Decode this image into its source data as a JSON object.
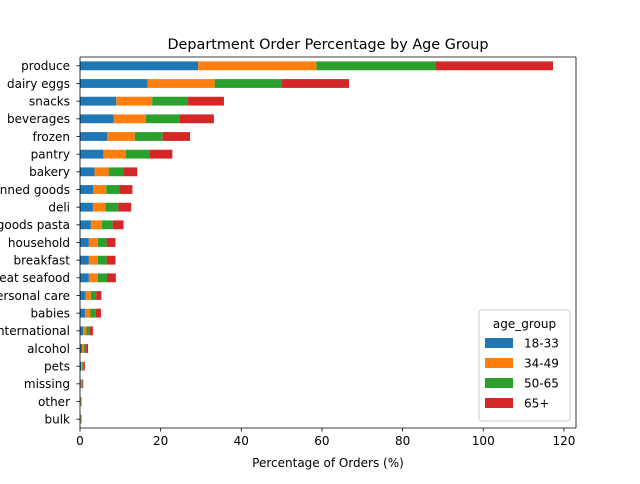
{
  "chart_data": {
    "type": "bar",
    "orientation": "horizontal",
    "stacked": true,
    "title": "Department Order Percentage by Age Group",
    "xlabel": "Percentage of Orders (%)",
    "ylabel": "",
    "xlim": [
      0,
      123
    ],
    "xticks": [
      0,
      20,
      40,
      60,
      80,
      100,
      120
    ],
    "grid": false,
    "categories": [
      "produce",
      "dairy eggs",
      "snacks",
      "beverages",
      "frozen",
      "pantry",
      "bakery",
      "canned goods",
      "deli",
      "dry goods pasta",
      "household",
      "breakfast",
      "meat seafood",
      "personal care",
      "babies",
      "international",
      "alcohol",
      "pets",
      "missing",
      "other",
      "bulk"
    ],
    "legend": {
      "title": "age_group",
      "placement": "lower-right"
    },
    "series": [
      {
        "name": "18-33",
        "color": "#1f77b4",
        "values": [
          29.3,
          16.8,
          9.0,
          8.3,
          6.7,
          5.8,
          3.6,
          3.3,
          3.2,
          2.7,
          2.2,
          2.2,
          2.2,
          1.4,
          1.3,
          0.8,
          0.5,
          0.3,
          0.2,
          0.1,
          0.1
        ]
      },
      {
        "name": "34-49",
        "color": "#ff7f0e",
        "values": [
          29.3,
          16.6,
          8.9,
          8.0,
          6.9,
          5.6,
          3.5,
          3.2,
          3.1,
          2.7,
          2.2,
          2.2,
          2.2,
          1.3,
          1.3,
          0.8,
          0.5,
          0.3,
          0.2,
          0.1,
          0.1
        ]
      },
      {
        "name": "50-65",
        "color": "#2ca02c",
        "values": [
          29.5,
          16.7,
          8.9,
          8.4,
          6.9,
          5.8,
          3.6,
          3.3,
          3.2,
          2.7,
          2.2,
          2.2,
          2.3,
          1.3,
          1.3,
          0.8,
          0.5,
          0.3,
          0.2,
          0.1,
          0.1
        ]
      },
      {
        "name": "65+",
        "color": "#d62728",
        "values": [
          29.2,
          16.6,
          8.9,
          8.5,
          6.8,
          5.7,
          3.5,
          3.2,
          3.2,
          2.7,
          2.2,
          2.2,
          2.2,
          1.3,
          1.3,
          0.8,
          0.5,
          0.3,
          0.2,
          0.1,
          0.1
        ]
      }
    ]
  }
}
